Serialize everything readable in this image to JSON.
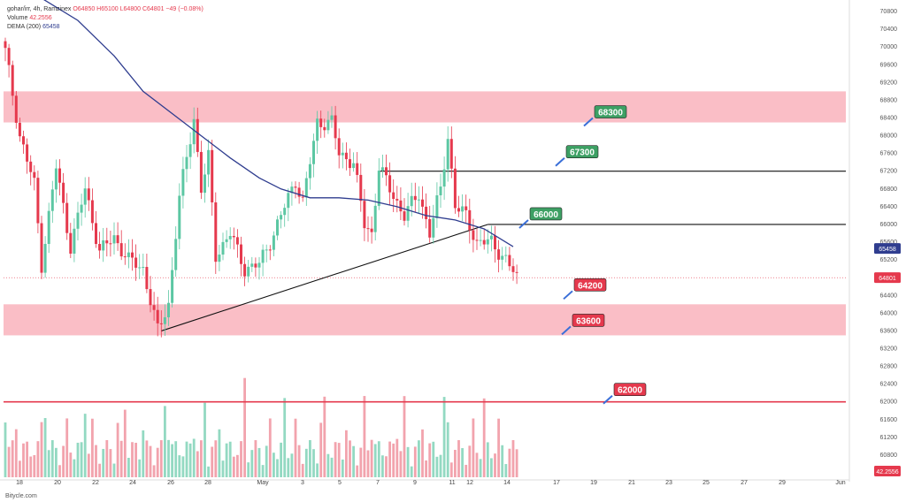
{
  "legend": {
    "symbol_line": "gohar/irr, 4h, Ramzinex",
    "ohlc": "O64850 H65100 L64800 C64801 −49 (−0.08%)",
    "volume_label": "Volume",
    "volume_value": "42.2556",
    "dema_label": "DEMA (200)",
    "dema_value": "65458"
  },
  "footer": "Bitycle.com",
  "colors": {
    "up": "#5cc7a3",
    "down": "#e5394d",
    "vol_up": "#93d9c2",
    "vol_down": "#f2a3ad",
    "zone": "#f9b3bc",
    "dema": "#2f3d8f",
    "green_label": "#3da064",
    "red_label": "#e5394d"
  },
  "chart_data": {
    "type": "candlestick",
    "price_axis": {
      "ticks": [
        70800,
        70400,
        70000,
        69600,
        69200,
        68800,
        68400,
        68000,
        67600,
        67200,
        66800,
        66400,
        66000,
        65600,
        65200,
        64800,
        64400,
        64000,
        63600,
        63200,
        62800,
        62400,
        62000,
        61600,
        61200,
        60800
      ],
      "tick_labels": [
        "70800",
        "70400",
        "70000",
        "69600",
        "69200",
        "68800",
        "68400",
        "68000",
        "67600",
        "67200",
        "66800",
        "66400",
        "66000",
        "65600",
        "65200",
        "64800",
        "64400",
        "64000",
        "63600",
        "63200",
        "62800",
        "62400",
        "62000",
        "61600",
        "61200",
        "60800"
      ],
      "range": [
        60600,
        71000
      ]
    },
    "time_axis": {
      "labels": [
        "18",
        "20",
        "22",
        "24",
        "26",
        "28",
        "May",
        "3",
        "5",
        "7",
        "9",
        "11",
        "12",
        "14",
        "17",
        "19",
        "21",
        "23",
        "25",
        "27",
        "29",
        "Jun"
      ]
    },
    "badges": [
      {
        "label": "65458",
        "price": 65458,
        "kind": "dema"
      },
      {
        "label": "64801",
        "price": 64801,
        "kind": "last"
      },
      {
        "label": "42.2556",
        "price": 60400,
        "kind": "volume"
      }
    ],
    "levels": [
      {
        "label": "68300",
        "price": 68300,
        "style": "green"
      },
      {
        "label": "67300",
        "price": 67300,
        "style": "green"
      },
      {
        "label": "66000",
        "price": 66000,
        "style": "green"
      },
      {
        "label": "64200",
        "price": 64200,
        "style": "red"
      },
      {
        "label": "63600",
        "price": 63600,
        "style": "red"
      },
      {
        "label": "62000",
        "price": 62000,
        "style": "red"
      }
    ],
    "zones": [
      {
        "from": 68300,
        "to": 69000
      },
      {
        "from": 63500,
        "to": 64200
      }
    ],
    "horizontal_lines": [
      67200,
      66000,
      62000
    ],
    "trendline": [
      {
        "bar": 43,
        "price": 63600
      },
      {
        "bar": 133,
        "price": 66000
      }
    ],
    "dema_path": [
      [
        0,
        71600
      ],
      [
        10,
        71100
      ],
      [
        20,
        70600
      ],
      [
        30,
        69800
      ],
      [
        38,
        69000
      ],
      [
        46,
        68500
      ],
      [
        54,
        68000
      ],
      [
        62,
        67500
      ],
      [
        70,
        67050
      ],
      [
        76,
        66800
      ],
      [
        84,
        66600
      ],
      [
        92,
        66600
      ],
      [
        100,
        66550
      ],
      [
        108,
        66400
      ],
      [
        116,
        66200
      ],
      [
        124,
        66100
      ],
      [
        132,
        65900
      ],
      [
        140,
        65500
      ]
    ],
    "key_points": [
      [
        0,
        69900
      ],
      [
        4,
        68000
      ],
      [
        8,
        66900
      ],
      [
        10,
        65100
      ],
      [
        14,
        67300
      ],
      [
        18,
        65500
      ],
      [
        22,
        66800
      ],
      [
        26,
        65400
      ],
      [
        30,
        65700
      ],
      [
        34,
        65200
      ],
      [
        38,
        65000
      ],
      [
        42,
        63600
      ],
      [
        45,
        64200
      ],
      [
        48,
        66600
      ],
      [
        52,
        68400
      ],
      [
        54,
        66800
      ],
      [
        56,
        67500
      ],
      [
        58,
        65300
      ],
      [
        62,
        65800
      ],
      [
        66,
        65000
      ],
      [
        70,
        65100
      ],
      [
        74,
        65800
      ],
      [
        77,
        66400
      ],
      [
        80,
        67000
      ],
      [
        82,
        66500
      ],
      [
        84,
        67400
      ],
      [
        86,
        68300
      ],
      [
        90,
        68300
      ],
      [
        92,
        67600
      ],
      [
        96,
        67400
      ],
      [
        99,
        66000
      ],
      [
        101,
        65800
      ],
      [
        103,
        67300
      ],
      [
        106,
        66800
      ],
      [
        110,
        66200
      ],
      [
        114,
        66700
      ],
      [
        117,
        65800
      ],
      [
        120,
        66800
      ],
      [
        122,
        68000
      ],
      [
        124,
        66400
      ],
      [
        127,
        66200
      ],
      [
        130,
        65600
      ],
      [
        134,
        65600
      ],
      [
        138,
        65200
      ],
      [
        141,
        64801
      ]
    ]
  }
}
